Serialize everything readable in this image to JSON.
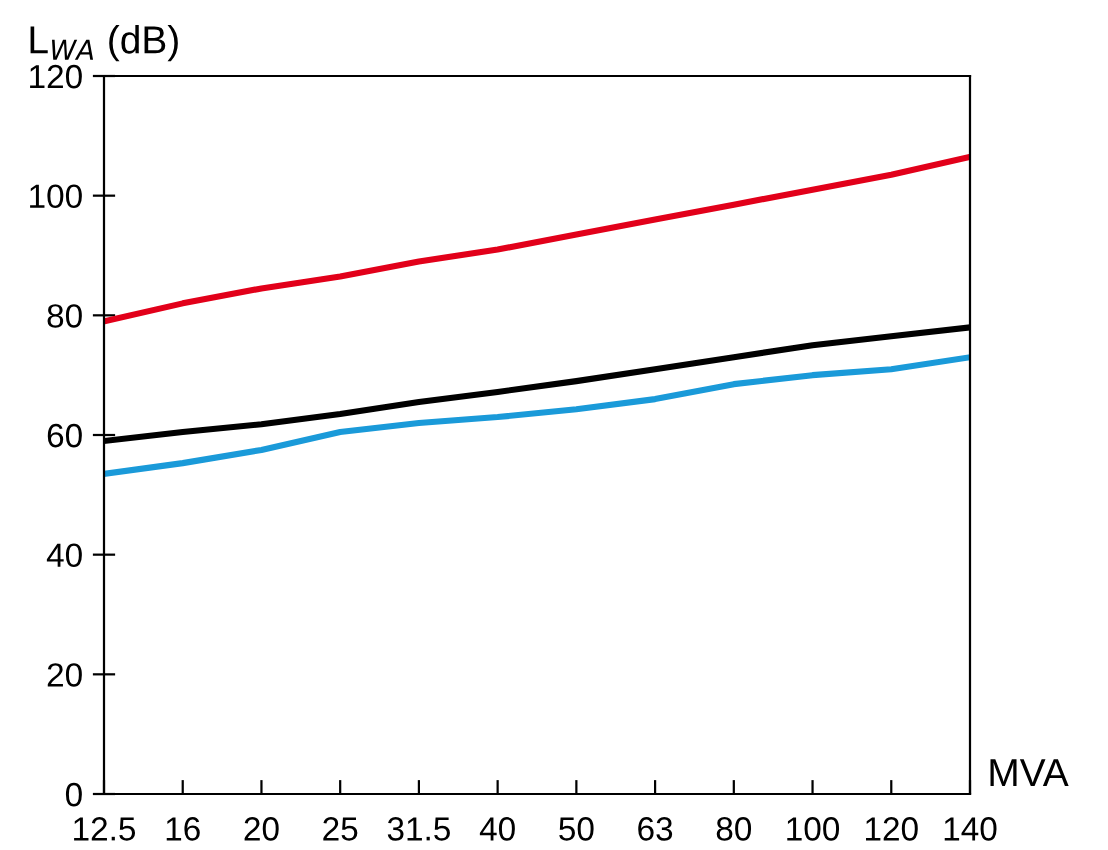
{
  "chart_data": {
    "type": "line",
    "ylabel": "L$_{WA}$ (dB)",
    "xlabel": "MVA",
    "categories": [
      "12.5",
      "16",
      "20",
      "25",
      "31.5",
      "40",
      "50",
      "63",
      "80",
      "100",
      "120",
      "140"
    ],
    "series": [
      {
        "color": "#e2001a",
        "values": [
          79,
          82,
          84.5,
          86.5,
          89,
          91,
          93.5,
          96,
          98.5,
          101,
          103.5,
          106.5
        ]
      },
      {
        "color": "#000000",
        "values": [
          59,
          60.5,
          61.8,
          63.5,
          65.5,
          67.2,
          69,
          71,
          73,
          75,
          76.5,
          78
        ]
      },
      {
        "color": "#1a9ad9",
        "values": [
          53.5,
          55.3,
          57.5,
          60.5,
          62,
          63,
          64.3,
          66,
          68.5,
          70,
          71,
          73
        ]
      }
    ],
    "ylim": [
      0,
      120
    ],
    "yticks": [
      0,
      20,
      40,
      60,
      80,
      100,
      120
    ],
    "grid": false,
    "legend": false,
    "marker": "none",
    "line_style": "solid"
  }
}
